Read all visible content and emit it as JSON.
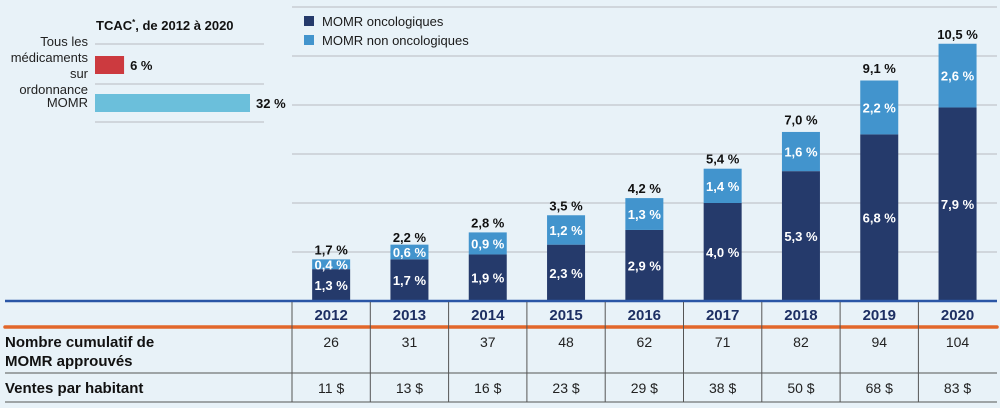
{
  "colors": {
    "oncology": "#253a6b",
    "non_oncology": "#4294cd",
    "all_drugs_bar": "#cc3a3f",
    "momr_bar": "#6bbfdb",
    "gridline": "#c8cdd2",
    "baseline": "#2a56a6",
    "table_accent": "#e2672b",
    "table_rule": "#555555"
  },
  "cagr": {
    "title": "TCAC*, de 2012 à 2020",
    "items": [
      {
        "label_lines": [
          "Tous les",
          "médicaments",
          "sur",
          "ordonnance"
        ],
        "value": 6,
        "display": "6 %",
        "color_key": "all_drugs_bar"
      },
      {
        "label_lines": [
          "MOMR"
        ],
        "value": 32,
        "display": "32 %",
        "color_key": "momr_bar"
      }
    ]
  },
  "chart_data": {
    "type": "bar",
    "stacked": true,
    "title": "",
    "xlabel": "",
    "ylabel": "",
    "ylim": [
      0,
      12
    ],
    "grid": true,
    "legend": "top-left",
    "categories": [
      "2012",
      "2013",
      "2014",
      "2015",
      "2016",
      "2017",
      "2018",
      "2019",
      "2020"
    ],
    "series": [
      {
        "name": "MOMR oncologiques",
        "color_key": "oncology",
        "values": [
          1.3,
          1.7,
          1.9,
          2.3,
          2.9,
          4.0,
          5.3,
          6.8,
          7.9
        ],
        "labels": [
          "1,3 %",
          "1,7 %",
          "1,9 %",
          "2,3 %",
          "2,9 %",
          "4,0 %",
          "5,3 %",
          "6,8 %",
          "7,9 %"
        ]
      },
      {
        "name": "MOMR non oncologiques",
        "color_key": "non_oncology",
        "values": [
          0.4,
          0.6,
          0.9,
          1.2,
          1.3,
          1.4,
          1.6,
          2.2,
          2.6
        ],
        "labels": [
          "0,4 %",
          "0,6 %",
          "0,9 %",
          "1,2 %",
          "1,3 %",
          "1,4 %",
          "1,6 %",
          "2,2 %",
          "2,6 %"
        ]
      }
    ],
    "totals": [
      1.7,
      2.2,
      2.8,
      3.5,
      4.2,
      5.4,
      7.0,
      9.1,
      10.5
    ],
    "total_labels": [
      "1,7 %",
      "2,2 %",
      "2,8 %",
      "3,5 %",
      "4,2 %",
      "5,4 %",
      "7,0 %",
      "9,1 %",
      "10,5 %"
    ]
  },
  "table": {
    "rows": [
      {
        "header_lines": [
          "Nombre cumulatif de",
          "MOMR approuvés"
        ],
        "cells": [
          "26",
          "31",
          "37",
          "48",
          "62",
          "71",
          "82",
          "94",
          "104"
        ]
      },
      {
        "header_lines": [
          "Ventes par habitant"
        ],
        "cells": [
          "11 $",
          "13 $",
          "16 $",
          "23 $",
          "29 $",
          "38 $",
          "50 $",
          "68 $",
          "83 $"
        ]
      }
    ]
  }
}
